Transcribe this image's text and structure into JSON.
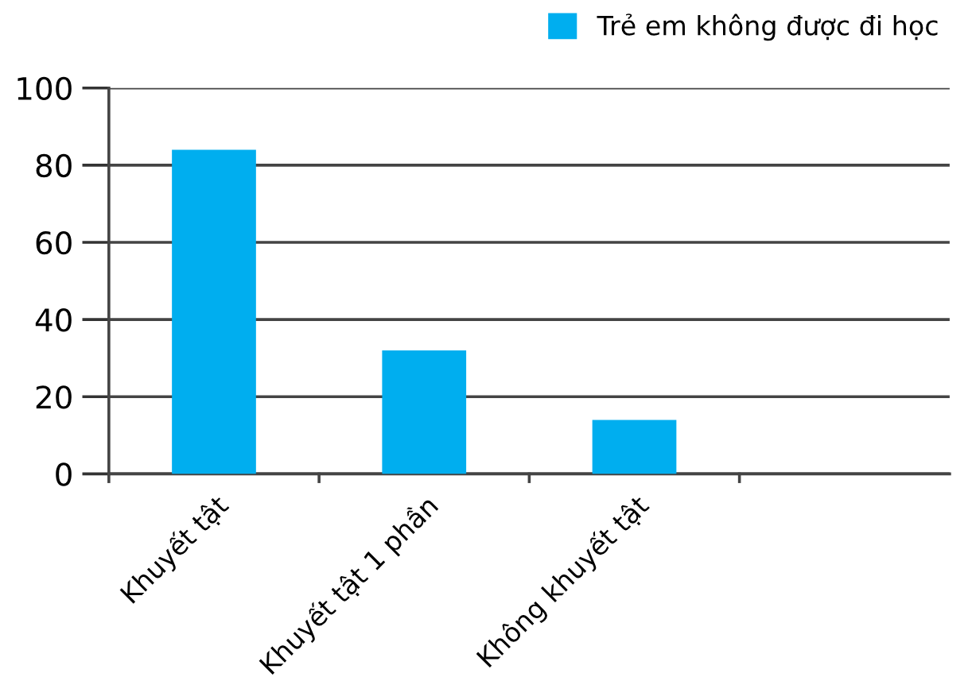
{
  "chart_data": {
    "type": "bar",
    "categories": [
      "Khuyết tật",
      "Khuyết tật 1 phần",
      "Không khuyết tật",
      null
    ],
    "series": [
      {
        "name": "Trẻ em không được đi học",
        "color": "#00aeef",
        "values": [
          84,
          32,
          14,
          null
        ]
      }
    ],
    "ylim": [
      0,
      100
    ],
    "yticks": [
      0,
      20,
      40,
      60,
      80,
      100
    ],
    "grid": "y",
    "legend": "top right"
  }
}
